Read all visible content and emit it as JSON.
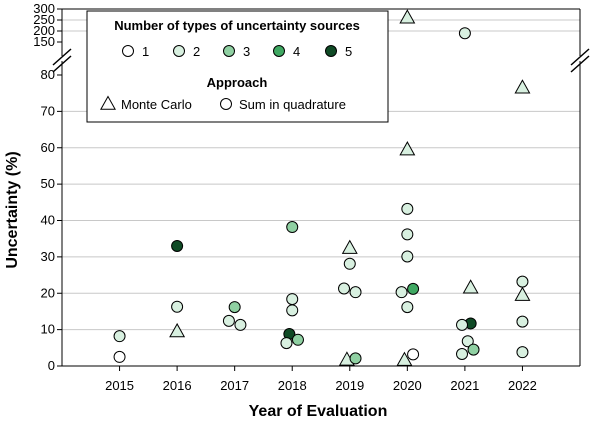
{
  "chart_data": {
    "type": "scatter",
    "xlabel": "Year of Evaluation",
    "ylabel": "Uncertainty (%)",
    "x_ticks": [
      "2015",
      "2016",
      "2017",
      "2018",
      "2019",
      "2020",
      "2021",
      "2022"
    ],
    "x_range": [
      2014,
      2023
    ],
    "y_lower": {
      "range": [
        0,
        80
      ],
      "ticks": [
        "0",
        "10",
        "20",
        "30",
        "40",
        "50",
        "60",
        "70",
        "80"
      ]
    },
    "y_upper": {
      "range": [
        150,
        300
      ],
      "ticks": [
        "150",
        "200",
        "250",
        "300"
      ]
    },
    "axis_break": true,
    "grid": {
      "horizontal": true,
      "vertical": false
    },
    "colors": {
      "1": "#ffffff",
      "2": "#d8f0e0",
      "3": "#8fd0a2",
      "4": "#3fa862",
      "5": "#0f4a25"
    },
    "legend": {
      "sources_title": "Number of types of uncertainty sources",
      "sources": [
        {
          "key": "1",
          "label": "1"
        },
        {
          "key": "2",
          "label": "2"
        },
        {
          "key": "3",
          "label": "3"
        },
        {
          "key": "4",
          "label": "4"
        },
        {
          "key": "5",
          "label": "5"
        }
      ],
      "approach_title": "Approach",
      "approaches": [
        {
          "shape": "triangle",
          "label": "Monte Carlo"
        },
        {
          "shape": "circle",
          "label": "Sum in quadrature"
        }
      ],
      "placement": "top-left"
    },
    "points": [
      {
        "x": 2015,
        "y": 8.2,
        "sources": 2,
        "shape": "circle"
      },
      {
        "x": 2015,
        "y": 2.5,
        "sources": 1,
        "shape": "circle"
      },
      {
        "x": 2016,
        "y": 33,
        "sources": 5,
        "shape": "circle"
      },
      {
        "x": 2016,
        "y": 16.3,
        "sources": 2,
        "shape": "circle"
      },
      {
        "x": 2016,
        "y": 9.5,
        "sources": 2,
        "shape": "triangle"
      },
      {
        "x": 2016.9,
        "y": 12.4,
        "sources": 2,
        "shape": "circle"
      },
      {
        "x": 2017.1,
        "y": 11.3,
        "sources": 2,
        "shape": "circle"
      },
      {
        "x": 2017,
        "y": 16.2,
        "sources": 3,
        "shape": "circle"
      },
      {
        "x": 2018,
        "y": 38.2,
        "sources": 3,
        "shape": "circle"
      },
      {
        "x": 2018,
        "y": 18.4,
        "sources": 2,
        "shape": "circle"
      },
      {
        "x": 2018,
        "y": 15.3,
        "sources": 2,
        "shape": "circle"
      },
      {
        "x": 2017.95,
        "y": 8.8,
        "sources": 5,
        "shape": "circle"
      },
      {
        "x": 2018.1,
        "y": 7.2,
        "sources": 3,
        "shape": "circle"
      },
      {
        "x": 2017.9,
        "y": 6.3,
        "sources": 2,
        "shape": "circle"
      },
      {
        "x": 2019,
        "y": 32.4,
        "sources": 2,
        "shape": "triangle"
      },
      {
        "x": 2019,
        "y": 28.1,
        "sources": 2,
        "shape": "circle"
      },
      {
        "x": 2018.9,
        "y": 21.3,
        "sources": 2,
        "shape": "circle"
      },
      {
        "x": 2019.1,
        "y": 20.3,
        "sources": 2,
        "shape": "circle"
      },
      {
        "x": 2018.95,
        "y": 1.7,
        "sources": 2,
        "shape": "triangle"
      },
      {
        "x": 2019.1,
        "y": 2.1,
        "sources": 3,
        "shape": "circle"
      },
      {
        "x": 2020,
        "y": 260,
        "sources": 2,
        "shape": "triangle"
      },
      {
        "x": 2020,
        "y": 59.5,
        "sources": 2,
        "shape": "triangle"
      },
      {
        "x": 2020,
        "y": 43.2,
        "sources": 2,
        "shape": "circle"
      },
      {
        "x": 2020,
        "y": 36.2,
        "sources": 2,
        "shape": "circle"
      },
      {
        "x": 2020,
        "y": 30.1,
        "sources": 2,
        "shape": "circle"
      },
      {
        "x": 2019.9,
        "y": 20.3,
        "sources": 2,
        "shape": "circle"
      },
      {
        "x": 2020.1,
        "y": 21.2,
        "sources": 4,
        "shape": "circle"
      },
      {
        "x": 2020,
        "y": 16.2,
        "sources": 2,
        "shape": "circle"
      },
      {
        "x": 2019.95,
        "y": 1.6,
        "sources": 2,
        "shape": "triangle"
      },
      {
        "x": 2020.1,
        "y": 3.2,
        "sources": 1,
        "shape": "circle"
      },
      {
        "x": 2021,
        "y": 190,
        "sources": 2,
        "shape": "circle"
      },
      {
        "x": 2021.1,
        "y": 21.5,
        "sources": 2,
        "shape": "triangle"
      },
      {
        "x": 2021.1,
        "y": 11.7,
        "sources": 5,
        "shape": "circle"
      },
      {
        "x": 2020.95,
        "y": 11.3,
        "sources": 2,
        "shape": "circle"
      },
      {
        "x": 2021.05,
        "y": 6.8,
        "sources": 2,
        "shape": "circle"
      },
      {
        "x": 2021.15,
        "y": 4.5,
        "sources": 3,
        "shape": "circle"
      },
      {
        "x": 2020.95,
        "y": 3.3,
        "sources": 2,
        "shape": "circle"
      },
      {
        "x": 2022,
        "y": 76.5,
        "sources": 2,
        "shape": "triangle"
      },
      {
        "x": 2022,
        "y": 23.2,
        "sources": 2,
        "shape": "circle"
      },
      {
        "x": 2022,
        "y": 19.5,
        "sources": 2,
        "shape": "triangle"
      },
      {
        "x": 2022,
        "y": 12.2,
        "sources": 2,
        "shape": "circle"
      },
      {
        "x": 2022,
        "y": 3.8,
        "sources": 2,
        "shape": "circle"
      }
    ]
  }
}
